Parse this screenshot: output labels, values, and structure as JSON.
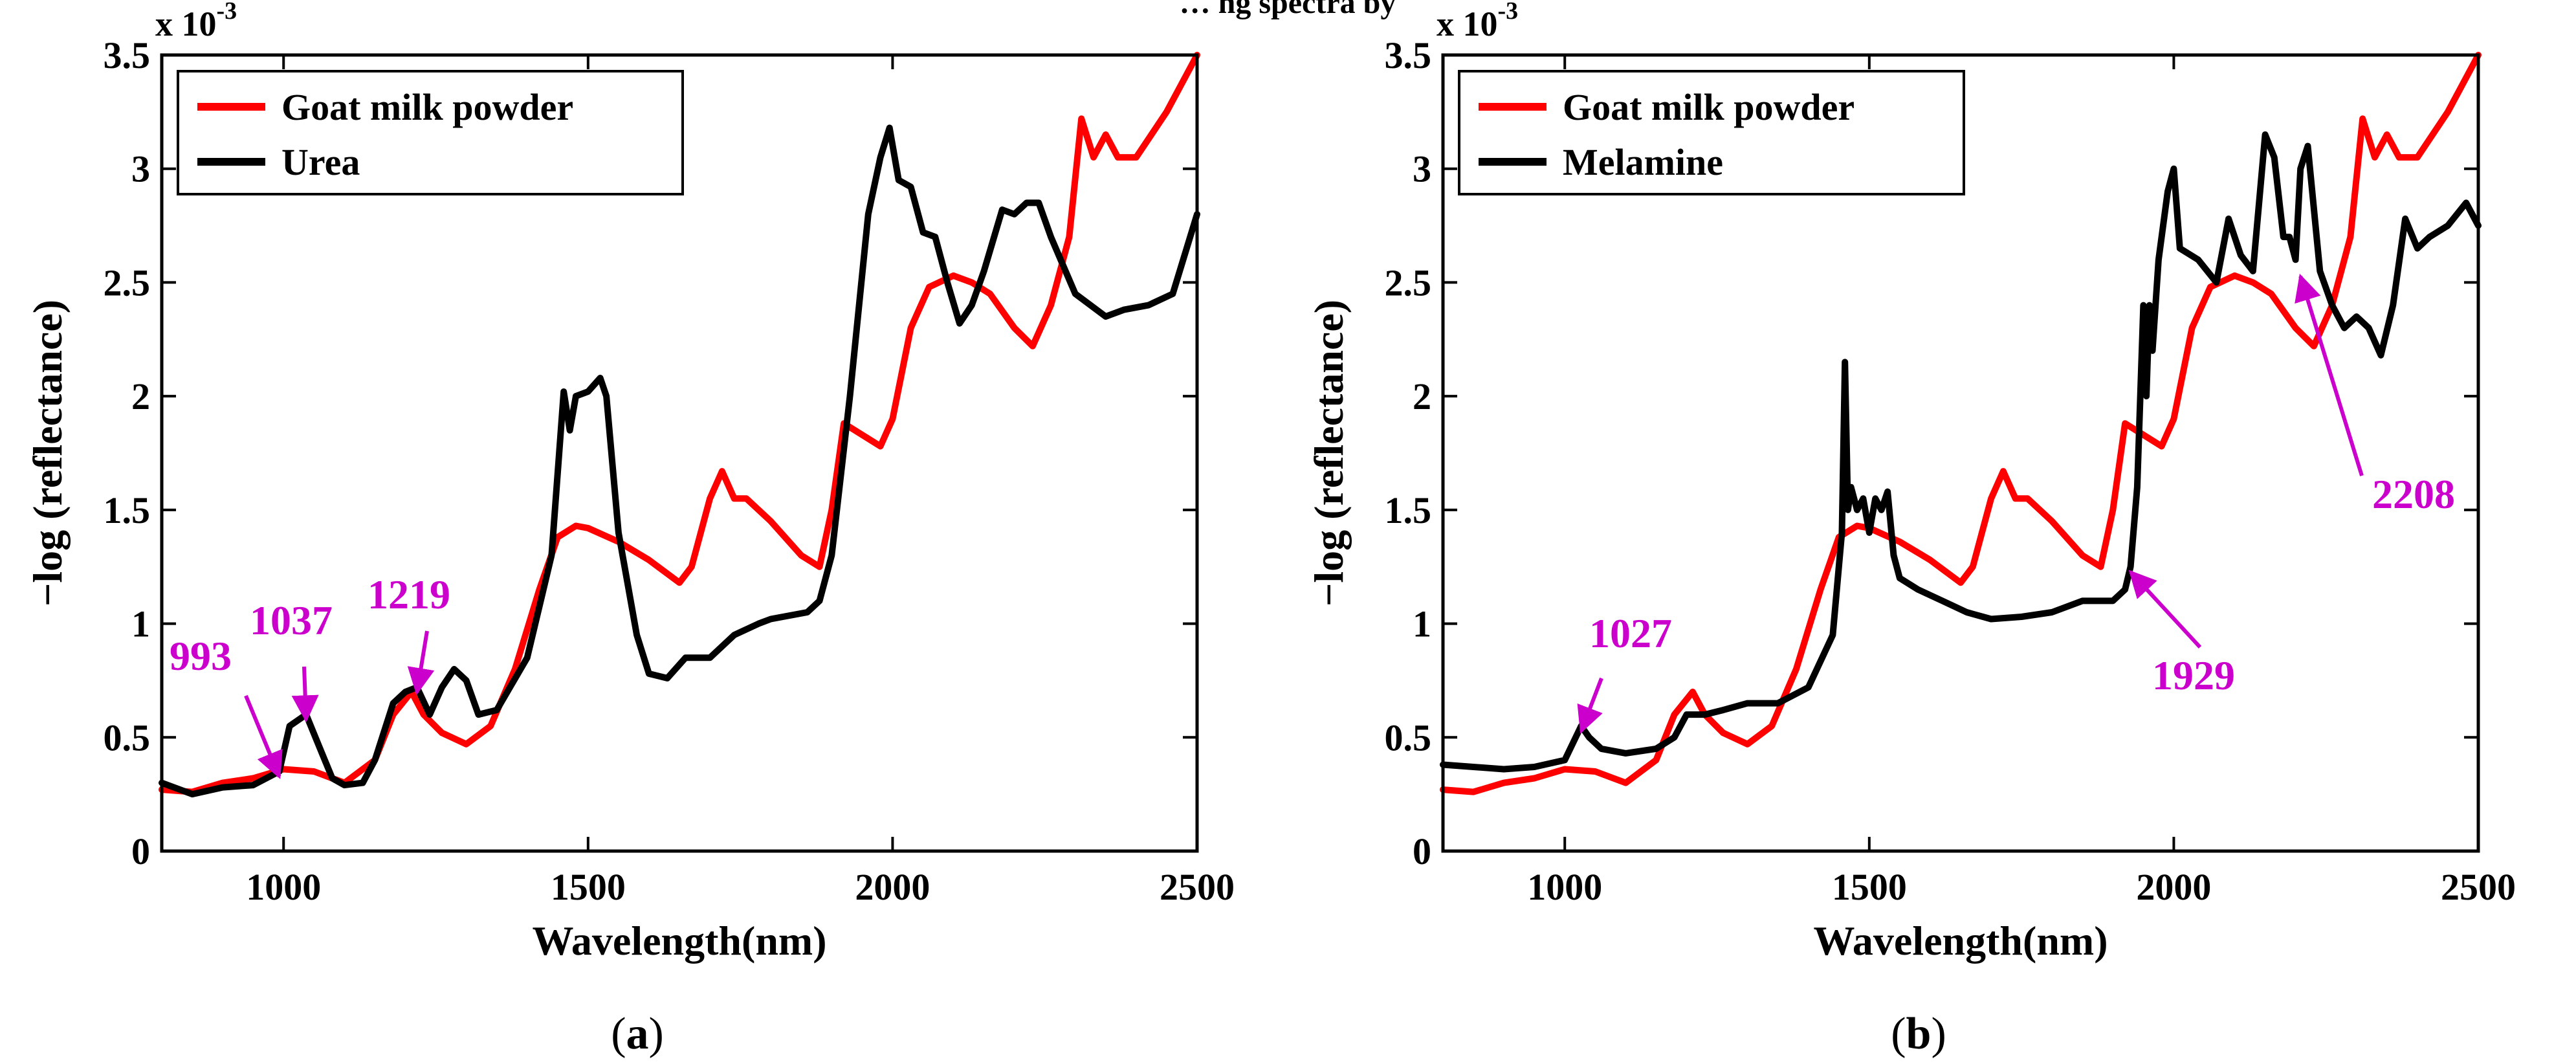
{
  "figure_caption_fragment": "… ng spectra by",
  "panels": [
    {
      "label_open": "(",
      "label_letter": "a",
      "label_close": ")"
    },
    {
      "label_open": "(",
      "label_letter": "b",
      "label_close": ")"
    }
  ],
  "chart_data": [
    {
      "type": "line",
      "xlabel": "Wavelength(nm)",
      "ylabel": "−log (reflectance)",
      "y_multiplier_base": "x 10",
      "y_multiplier_exp": "-3",
      "xlim": [
        800,
        2500
      ],
      "ylim": [
        0,
        3.5
      ],
      "xticks": [
        "1000",
        "1500",
        "2000",
        "2500"
      ],
      "xtick_values": [
        1000,
        1500,
        2000,
        2500
      ],
      "yticks": [
        "0",
        "0.5",
        "1",
        "1.5",
        "2",
        "2.5",
        "3",
        "3.5"
      ],
      "ytick_values": [
        0,
        0.5,
        1,
        1.5,
        2,
        2.5,
        3,
        3.5
      ],
      "legend_position": "top-left",
      "colors": {
        "goat": "#ff0000",
        "other": "#000000",
        "annotation": "#cc00cc"
      },
      "series": [
        {
          "name": "Goat milk powder",
          "color": "#ff0000",
          "x": [
            800,
            850,
            900,
            950,
            1000,
            1050,
            1100,
            1150,
            1180,
            1210,
            1230,
            1260,
            1300,
            1340,
            1380,
            1420,
            1450,
            1480,
            1500,
            1550,
            1600,
            1650,
            1670,
            1700,
            1720,
            1740,
            1760,
            1800,
            1850,
            1880,
            1900,
            1920,
            1950,
            1980,
            2000,
            2030,
            2060,
            2100,
            2130,
            2160,
            2200,
            2230,
            2260,
            2290,
            2310,
            2330,
            2350,
            2370,
            2400,
            2450,
            2500
          ],
          "y": [
            0.27,
            0.26,
            0.3,
            0.32,
            0.36,
            0.35,
            0.3,
            0.4,
            0.6,
            0.7,
            0.6,
            0.52,
            0.47,
            0.55,
            0.8,
            1.15,
            1.38,
            1.43,
            1.42,
            1.36,
            1.28,
            1.18,
            1.25,
            1.55,
            1.67,
            1.55,
            1.55,
            1.45,
            1.3,
            1.25,
            1.5,
            1.88,
            1.83,
            1.78,
            1.9,
            2.3,
            2.48,
            2.53,
            2.5,
            2.45,
            2.3,
            2.22,
            2.4,
            2.7,
            3.22,
            3.05,
            3.15,
            3.05,
            3.05,
            3.25,
            3.5
          ]
        },
        {
          "name": "Urea",
          "color": "#000000",
          "x": [
            800,
            850,
            900,
            950,
            993,
            1010,
            1037,
            1060,
            1080,
            1100,
            1130,
            1150,
            1180,
            1200,
            1219,
            1240,
            1260,
            1280,
            1300,
            1320,
            1350,
            1400,
            1440,
            1460,
            1470,
            1480,
            1500,
            1520,
            1530,
            1550,
            1580,
            1600,
            1630,
            1660,
            1700,
            1740,
            1780,
            1800,
            1860,
            1880,
            1900,
            1930,
            1960,
            1980,
            1995,
            2010,
            2030,
            2050,
            2070,
            2090,
            2110,
            2130,
            2150,
            2180,
            2200,
            2220,
            2240,
            2260,
            2300,
            2350,
            2380,
            2420,
            2460,
            2500
          ],
          "y": [
            0.3,
            0.25,
            0.28,
            0.29,
            0.35,
            0.55,
            0.6,
            0.45,
            0.32,
            0.29,
            0.3,
            0.4,
            0.65,
            0.7,
            0.72,
            0.6,
            0.72,
            0.8,
            0.75,
            0.6,
            0.62,
            0.85,
            1.3,
            2.02,
            1.85,
            2.0,
            2.02,
            2.08,
            2.0,
            1.4,
            0.95,
            0.78,
            0.76,
            0.85,
            0.85,
            0.95,
            1.0,
            1.02,
            1.05,
            1.1,
            1.3,
            2.0,
            2.8,
            3.05,
            3.18,
            2.95,
            2.92,
            2.72,
            2.7,
            2.5,
            2.32,
            2.4,
            2.55,
            2.82,
            2.8,
            2.85,
            2.85,
            2.7,
            2.45,
            2.35,
            2.38,
            2.4,
            2.45,
            2.8
          ]
        }
      ],
      "annotations": [
        {
          "text": "993",
          "x": 993,
          "y": 0.35
        },
        {
          "text": "1037",
          "x": 1037,
          "y": 0.6
        },
        {
          "text": "1219",
          "x": 1219,
          "y": 0.72
        }
      ]
    },
    {
      "type": "line",
      "xlabel": "Wavelength(nm)",
      "ylabel": "−log (reflectance)",
      "y_multiplier_base": "x 10",
      "y_multiplier_exp": "-3",
      "xlim": [
        800,
        2500
      ],
      "ylim": [
        0,
        3.5
      ],
      "xticks": [
        "1000",
        "1500",
        "2000",
        "2500"
      ],
      "xtick_values": [
        1000,
        1500,
        2000,
        2500
      ],
      "yticks": [
        "0",
        "0.5",
        "1",
        "1.5",
        "2",
        "2.5",
        "3",
        "3.5"
      ],
      "ytick_values": [
        0,
        0.5,
        1,
        1.5,
        2,
        2.5,
        3,
        3.5
      ],
      "legend_position": "top-left",
      "colors": {
        "goat": "#ff0000",
        "other": "#000000",
        "annotation": "#cc00cc"
      },
      "series": [
        {
          "name": "Goat milk powder",
          "color": "#ff0000",
          "x": [
            800,
            850,
            900,
            950,
            1000,
            1050,
            1100,
            1150,
            1180,
            1210,
            1230,
            1260,
            1300,
            1340,
            1380,
            1420,
            1450,
            1480,
            1500,
            1550,
            1600,
            1650,
            1670,
            1700,
            1720,
            1740,
            1760,
            1800,
            1850,
            1880,
            1900,
            1920,
            1950,
            1980,
            2000,
            2030,
            2060,
            2100,
            2130,
            2160,
            2200,
            2230,
            2260,
            2290,
            2310,
            2330,
            2350,
            2370,
            2400,
            2450,
            2500
          ],
          "y": [
            0.27,
            0.26,
            0.3,
            0.32,
            0.36,
            0.35,
            0.3,
            0.4,
            0.6,
            0.7,
            0.6,
            0.52,
            0.47,
            0.55,
            0.8,
            1.15,
            1.38,
            1.43,
            1.42,
            1.36,
            1.28,
            1.18,
            1.25,
            1.55,
            1.67,
            1.55,
            1.55,
            1.45,
            1.3,
            1.25,
            1.5,
            1.88,
            1.83,
            1.78,
            1.9,
            2.3,
            2.48,
            2.53,
            2.5,
            2.45,
            2.3,
            2.22,
            2.4,
            2.7,
            3.22,
            3.05,
            3.15,
            3.05,
            3.05,
            3.25,
            3.5
          ]
        },
        {
          "name": "Melamine",
          "color": "#000000",
          "x": [
            800,
            900,
            950,
            1000,
            1027,
            1040,
            1060,
            1100,
            1150,
            1180,
            1200,
            1230,
            1260,
            1300,
            1350,
            1400,
            1440,
            1455,
            1460,
            1465,
            1470,
            1480,
            1490,
            1500,
            1510,
            1520,
            1530,
            1540,
            1550,
            1580,
            1620,
            1660,
            1700,
            1750,
            1800,
            1850,
            1880,
            1900,
            1920,
            1929,
            1940,
            1950,
            1955,
            1960,
            1965,
            1975,
            1990,
            2000,
            2010,
            2040,
            2070,
            2090,
            2110,
            2130,
            2150,
            2165,
            2180,
            2190,
            2200,
            2208,
            2220,
            2240,
            2260,
            2280,
            2300,
            2320,
            2340,
            2360,
            2380,
            2400,
            2420,
            2450,
            2480,
            2500
          ],
          "y": [
            0.38,
            0.36,
            0.37,
            0.4,
            0.55,
            0.5,
            0.45,
            0.43,
            0.45,
            0.5,
            0.6,
            0.6,
            0.62,
            0.65,
            0.65,
            0.72,
            0.95,
            1.4,
            2.15,
            1.5,
            1.6,
            1.5,
            1.55,
            1.4,
            1.55,
            1.5,
            1.58,
            1.3,
            1.2,
            1.15,
            1.1,
            1.05,
            1.02,
            1.03,
            1.05,
            1.1,
            1.1,
            1.1,
            1.15,
            1.25,
            1.6,
            2.4,
            2.0,
            2.4,
            2.2,
            2.6,
            2.9,
            3.0,
            2.65,
            2.6,
            2.5,
            2.78,
            2.62,
            2.55,
            3.15,
            3.05,
            2.7,
            2.7,
            2.6,
            3.0,
            3.1,
            2.55,
            2.4,
            2.3,
            2.35,
            2.3,
            2.18,
            2.4,
            2.78,
            2.65,
            2.7,
            2.75,
            2.85,
            2.75
          ]
        }
      ],
      "annotations": [
        {
          "text": "1027",
          "x": 1027,
          "y": 0.55
        },
        {
          "text": "1929",
          "x": 1929,
          "y": 1.25
        },
        {
          "text": "2208",
          "x": 2208,
          "y": 2.55
        }
      ]
    }
  ]
}
